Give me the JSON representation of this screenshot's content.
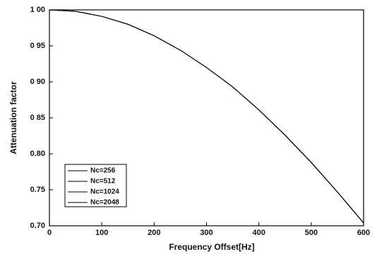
{
  "chart_data": {
    "type": "line",
    "x_label": "Frequency Offset[Hz]",
    "y_label": "Attenuation factor",
    "x": [
      0,
      50,
      100,
      150,
      200,
      250,
      300,
      350,
      400,
      450,
      500,
      550,
      600
    ],
    "series": [
      {
        "name": "Nc=256",
        "color": "#000000",
        "values": [
          1.0,
          0.998,
          0.991,
          0.98,
          0.964,
          0.944,
          0.92,
          0.893,
          0.861,
          0.826,
          0.788,
          0.747,
          0.704
        ]
      },
      {
        "name": "Nc=512",
        "color": "#000000",
        "values": [
          1.0,
          0.998,
          0.991,
          0.98,
          0.964,
          0.944,
          0.92,
          0.893,
          0.861,
          0.826,
          0.788,
          0.747,
          0.704
        ]
      },
      {
        "name": "Nc=1024",
        "color": "#000000",
        "values": [
          1.0,
          0.998,
          0.991,
          0.98,
          0.964,
          0.944,
          0.92,
          0.893,
          0.861,
          0.826,
          0.788,
          0.747,
          0.704
        ]
      },
      {
        "name": "Nc=2048",
        "color": "#000000",
        "values": [
          1.0,
          0.998,
          0.991,
          0.98,
          0.964,
          0.944,
          0.92,
          0.893,
          0.861,
          0.826,
          0.788,
          0.747,
          0.704
        ]
      }
    ],
    "xlim": [
      0,
      600
    ],
    "xticks": [
      0,
      100,
      200,
      300,
      400,
      500,
      600
    ],
    "ylim": [
      0.7,
      1.0
    ],
    "yticks": [
      {
        "value": 0.7,
        "label": "0.70"
      },
      {
        "value": 0.75,
        "label": "0.75"
      },
      {
        "value": 0.8,
        "label": "0.80"
      },
      {
        "value": 0.85,
        "label": "0 85"
      },
      {
        "value": 0.9,
        "label": "0 90"
      },
      {
        "value": 0.95,
        "label": "0 95"
      },
      {
        "value": 1.0,
        "label": "1 00"
      }
    ],
    "legend": "lower left",
    "grid": false
  }
}
